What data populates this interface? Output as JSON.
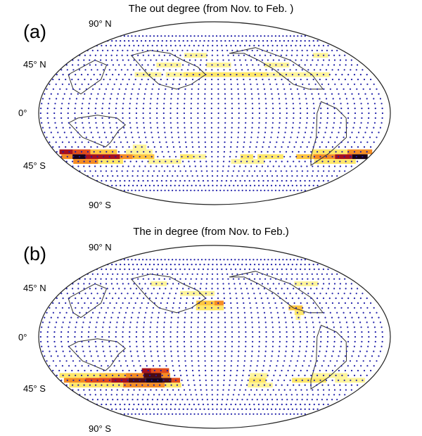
{
  "panels": [
    {
      "label": "(a)",
      "title": "The out degree (from Nov. to Feb. )",
      "lat_labels": {
        "n90": "90° N",
        "n45": "45° N",
        "eq": "0°",
        "s45": "45° S",
        "s90": "90° S"
      },
      "bands": [
        {
          "band": "s45",
          "cells": [
            [
              -178,
              -162,
              0.5
            ],
            [
              -165,
              -150,
              0.95
            ],
            [
              -150,
              -130,
              0.75
            ],
            [
              -130,
              -110,
              0.7
            ],
            [
              -110,
              -95,
              0.55
            ],
            [
              -95,
              -70,
              0.35
            ],
            [
              -40,
              -25,
              0.25
            ],
            [
              -25,
              -10,
              0.15
            ],
            [
              30,
              45,
              0.3
            ],
            [
              50,
              80,
              0.2
            ],
            [
              95,
              115,
              0.35
            ],
            [
              115,
              140,
              0.45
            ],
            [
              140,
              160,
              0.75
            ],
            [
              160,
              178,
              0.95
            ]
          ]
        },
        {
          "band": "s40",
          "cells": [
            [
              -175,
              -160,
              0.7
            ],
            [
              -160,
              -140,
              0.6
            ],
            [
              -140,
              -110,
              0.35
            ],
            [
              -100,
              -70,
              0.15
            ],
            [
              110,
              150,
              0.2
            ],
            [
              150,
              178,
              0.45
            ]
          ]
        },
        {
          "band": "s50",
          "cells": [
            [
              -170,
              -140,
              0.45
            ],
            [
              -140,
              -110,
              0.3
            ],
            [
              -80,
              -40,
              0.12
            ],
            [
              20,
              60,
              0.12
            ],
            [
              120,
              170,
              0.2
            ]
          ]
        },
        {
          "band": "n40",
          "cells": [
            [
              -90,
              -60,
              0.1
            ],
            [
              -55,
              -35,
              0.12
            ],
            [
              -35,
              -10,
              0.25
            ],
            [
              -10,
              20,
              0.28
            ],
            [
              20,
              60,
              0.22
            ],
            [
              60,
              100,
              0.15
            ],
            [
              100,
              130,
              0.12
            ]
          ]
        },
        {
          "band": "n50",
          "cells": [
            [
              -70,
              -40,
              0.1
            ],
            [
              -10,
              20,
              0.1
            ],
            [
              60,
              90,
              0.08
            ]
          ]
        },
        {
          "band": "n60",
          "cells": [
            [
              -40,
              -10,
              0.08
            ],
            [
              130,
              150,
              0.08
            ]
          ]
        },
        {
          "band": "s35",
          "cells": [
            [
              -90,
              -75,
              0.1
            ]
          ]
        }
      ]
    },
    {
      "label": "(b)",
      "title": "The in degree (from Nov. to Feb.)",
      "lat_labels": {
        "n90": "90° N",
        "n45": "45° N",
        "eq": "0°",
        "s45": "45° S",
        "s90": "90° S"
      },
      "bands": [
        {
          "band": "n35",
          "cells": [
            [
              -20,
              0,
              0.35
            ],
            [
              0,
              10,
              0.45
            ]
          ]
        },
        {
          "band": "n30",
          "cells": [
            [
              -20,
              0,
              0.25
            ],
            [
              -5,
              10,
              0.3
            ],
            [
              80,
              95,
              0.35
            ]
          ]
        },
        {
          "band": "n25",
          "cells": [
            [
              85,
              95,
              0.25
            ]
          ]
        },
        {
          "band": "n20",
          "cells": [
            [
              85,
              90,
              0.15
            ]
          ]
        },
        {
          "band": "s45",
          "cells": [
            [
              -175,
              -150,
              0.45
            ],
            [
              -150,
              -120,
              0.6
            ],
            [
              -120,
              -100,
              0.75
            ],
            [
              -100,
              -80,
              0.9
            ],
            [
              -80,
              -60,
              1.0
            ],
            [
              -60,
              -50,
              0.85
            ],
            [
              -50,
              -40,
              0.6
            ],
            [
              40,
              60,
              0.2
            ],
            [
              90,
              130,
              0.22
            ],
            [
              140,
              175,
              0.12
            ]
          ]
        },
        {
          "band": "s40",
          "cells": [
            [
              -175,
              -130,
              0.25
            ],
            [
              -130,
              -100,
              0.35
            ],
            [
              -100,
              -80,
              0.55
            ],
            [
              -80,
              -60,
              0.85
            ],
            [
              -60,
              -50,
              0.5
            ],
            [
              40,
              60,
              0.12
            ],
            [
              110,
              150,
              0.15
            ]
          ]
        },
        {
          "band": "s35",
          "cells": [
            [
              -80,
              -60,
              0.8
            ],
            [
              -70,
              -50,
              0.6
            ]
          ]
        },
        {
          "band": "s50",
          "cells": [
            [
              -175,
              -140,
              0.2
            ],
            [
              -140,
              -110,
              0.25
            ],
            [
              -110,
              -60,
              0.45
            ],
            [
              -60,
              -40,
              0.25
            ],
            [
              40,
              70,
              0.12
            ]
          ]
        },
        {
          "band": "n45",
          "cells": [
            [
              -40,
              -20,
              0.12
            ],
            [
              -20,
              0,
              0.1
            ]
          ]
        },
        {
          "band": "n55",
          "cells": [
            [
              -80,
              -60,
              0.08
            ],
            [
              100,
              130,
              0.08
            ]
          ]
        }
      ]
    }
  ],
  "colors": {
    "dots": "#1a1aa8",
    "coast": "#333333",
    "ramp": [
      "#fffbd6",
      "#fff59a",
      "#ffe86a",
      "#ffc640",
      "#f58d23",
      "#e24c1a",
      "#a7101c",
      "#4b0a12",
      "#180017"
    ]
  }
}
